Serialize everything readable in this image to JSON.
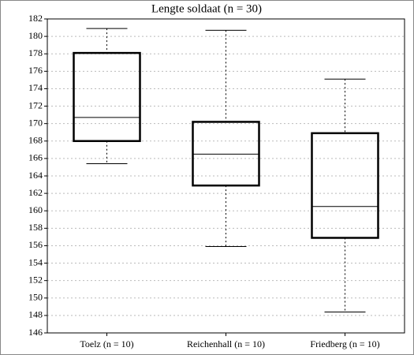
{
  "chart_data": {
    "type": "box",
    "title": "Lengte soldaat (n = 30)",
    "categories": [
      "Toelz (n = 10)",
      "Reichenhall (n = 10)",
      "Friedberg (n = 10)"
    ],
    "stats": [
      {
        "min": 165.4,
        "q1": 168.0,
        "median": 170.7,
        "q3": 178.1,
        "max": 180.9
      },
      {
        "min": 155.9,
        "q1": 162.9,
        "median": 166.5,
        "q3": 170.2,
        "max": 180.7
      },
      {
        "min": 148.4,
        "q1": 156.9,
        "median": 160.5,
        "q3": 168.9,
        "max": 175.1
      }
    ],
    "color": "#000000",
    "ylim": [
      146,
      182
    ],
    "yticks": [
      146,
      148,
      150,
      152,
      154,
      156,
      158,
      160,
      162,
      164,
      166,
      168,
      170,
      172,
      174,
      176,
      178,
      180,
      182
    ],
    "grid": true
  }
}
